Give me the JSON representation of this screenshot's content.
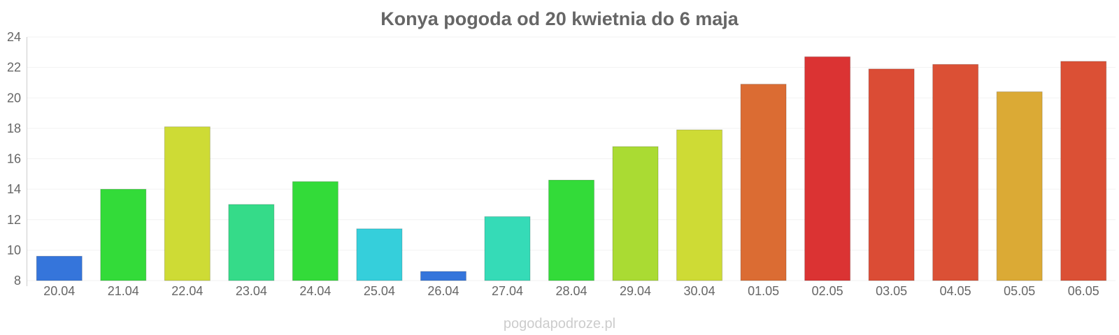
{
  "chart_data": {
    "type": "bar",
    "title": "Konya pogoda od 20 kwietnia do 6 maja",
    "xlabel": "",
    "ylabel": "",
    "ylim": [
      8,
      24
    ],
    "yticks": [
      8,
      10,
      12,
      14,
      16,
      18,
      20,
      22,
      24
    ],
    "grid": true,
    "legend": "none",
    "categories": [
      "20.04",
      "21.04",
      "22.04",
      "23.04",
      "24.04",
      "25.04",
      "26.04",
      "27.04",
      "28.04",
      "29.04",
      "30.04",
      "01.05",
      "02.05",
      "03.05",
      "04.05",
      "05.05",
      "06.05"
    ],
    "values": [
      9.6,
      14.0,
      18.1,
      13.0,
      14.5,
      11.4,
      8.6,
      12.2,
      14.6,
      16.8,
      17.9,
      20.9,
      22.7,
      21.9,
      22.2,
      20.4,
      22.4
    ],
    "colors": [
      "#3575db",
      "#33db39",
      "#cedb35",
      "#35db89",
      "#33db39",
      "#35cfdb",
      "#3575db",
      "#35dbb7",
      "#33db39",
      "#aadb33",
      "#cedb35",
      "#db6c33",
      "#db3333",
      "#db4c35",
      "#db5035",
      "#dbaa35",
      "#db5035"
    ]
  },
  "watermark": "pogodapodroze.pl"
}
